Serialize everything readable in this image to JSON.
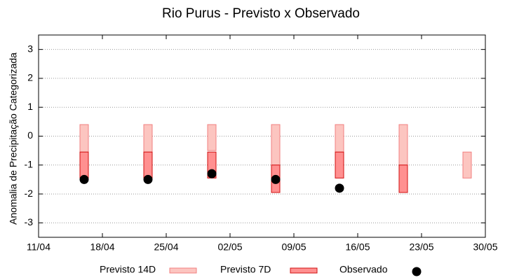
{
  "chart_data": {
    "type": "range",
    "title": "Rio Purus - Previsto x Observado",
    "y_label": "Anomalia de Precipitação Categorizada",
    "x": [
      "16/04",
      "23/04",
      "30/04",
      "07/05",
      "14/05",
      "21/05",
      "28/05"
    ],
    "xlim": [
      "11/04",
      "30/05"
    ],
    "xticks": [
      "11/04",
      "18/04",
      "25/04",
      "02/05",
      "09/05",
      "16/05",
      "23/05",
      "30/05"
    ],
    "ylim": [
      -3.5,
      3.5
    ],
    "yticks": [
      -3,
      -2,
      -1,
      0,
      1,
      2,
      3
    ],
    "grid": true,
    "series": [
      {
        "name": "Previsto 14D",
        "color": "#fcc5c0",
        "edge": "#f28080",
        "kind": "bar",
        "high": [
          0.4,
          0.4,
          0.4,
          0.4,
          0.4,
          0.4,
          -0.55
        ],
        "low": [
          -0.55,
          -0.55,
          -0.5,
          -1,
          -0.55,
          -1,
          -1.45
        ]
      },
      {
        "name": "Previsto 7D",
        "color": "#ff9090",
        "edge": "#d01010",
        "kind": "bar",
        "high": [
          -0.55,
          -0.55,
          -0.55,
          -1,
          -0.55,
          -1,
          null
        ],
        "low": [
          -1.45,
          -1.45,
          -1.45,
          -1.95,
          -1.45,
          -1.95,
          null
        ]
      },
      {
        "name": "Observado",
        "color": "#000000",
        "kind": "point",
        "values": [
          -1.5,
          -1.5,
          -1.3,
          -1.5,
          -1.8,
          null,
          null
        ]
      }
    ]
  }
}
